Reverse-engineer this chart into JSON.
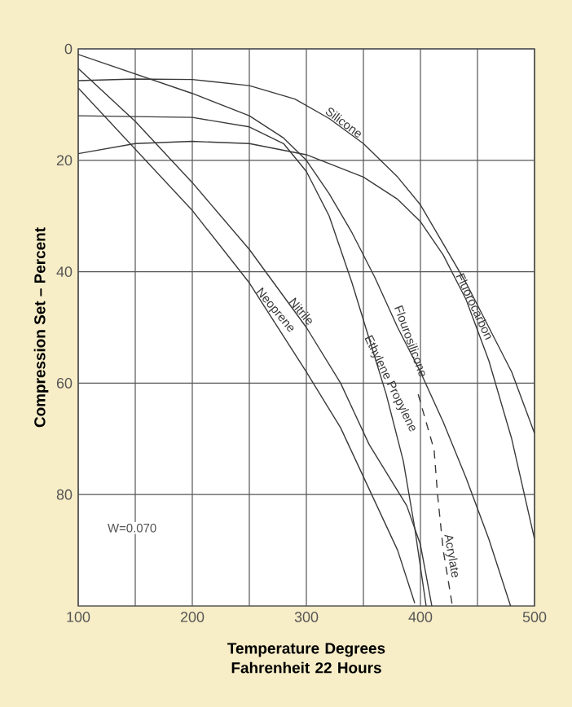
{
  "chart_data": {
    "type": "line",
    "xlabel": "Temperature Degrees Fahrenheit 22 Hours",
    "ylabel": "Compression Set – Percent",
    "xlim": [
      100,
      500
    ],
    "ylim": [
      100,
      0
    ],
    "xticks": [
      100,
      {
        "value": 150,
        "label": null
      },
      200,
      {
        "value": 250,
        "label": null
      },
      300,
      {
        "value": 350,
        "label": null
      },
      400,
      {
        "value": 450,
        "label": null
      },
      500
    ],
    "yticks": [
      0,
      20,
      40,
      60,
      80
    ],
    "grid": true,
    "marker": "none",
    "annotations": [
      "W=0.070"
    ],
    "series": [
      {
        "name": "Silicone",
        "color": "#3a3a3a",
        "x": [
          100,
          150,
          200,
          250,
          290,
          320,
          350,
          380,
          400,
          420,
          440,
          460,
          480,
          500
        ],
        "values": [
          5.7,
          5.4,
          5.5,
          6.6,
          9,
          12.5,
          17,
          23,
          28,
          35,
          42,
          50,
          58,
          69
        ]
      },
      {
        "name": "Fluorocarbon",
        "color": "#3a3a3a",
        "x": [
          100,
          150,
          200,
          250,
          300,
          350,
          380,
          400,
          420,
          440,
          460,
          480,
          500
        ],
        "values": [
          18.8,
          17,
          16.6,
          17,
          19,
          23,
          27,
          31,
          37,
          45,
          56,
          70,
          88
        ]
      },
      {
        "name": "Flourosilicone",
        "color": "#3a3a3a",
        "x": [
          100,
          150,
          200,
          250,
          280,
          300,
          320,
          340,
          360,
          380,
          400,
          420,
          440,
          460,
          479
        ],
        "values": [
          1,
          4.5,
          8,
          12,
          16,
          20,
          26,
          33,
          41,
          50,
          58,
          67,
          77,
          88,
          100
        ]
      },
      {
        "name": "Ethylene Propylene",
        "color": "#3a3a3a",
        "x": [
          100,
          200,
          250,
          280,
          300,
          320,
          340,
          355,
          370,
          385,
          395,
          405
        ],
        "values": [
          12,
          12.3,
          14,
          17,
          22,
          30,
          42,
          52,
          62,
          74,
          86,
          100
        ]
      },
      {
        "name": "Nitrile",
        "color": "#3a3a3a",
        "x": [
          100,
          150,
          200,
          250,
          300,
          330,
          355,
          388,
          400,
          410
        ],
        "values": [
          3.5,
          13,
          24,
          36,
          50,
          60,
          71,
          82,
          89,
          100
        ]
      },
      {
        "name": "Neoprene",
        "color": "#3a3a3a",
        "x": [
          100,
          150,
          200,
          250,
          300,
          330,
          355,
          380,
          395
        ],
        "values": [
          7,
          18,
          29,
          42,
          58,
          68,
          79,
          90,
          99.5
        ]
      },
      {
        "name": "Acrylate",
        "color": "#3a3a3a",
        "line_style": "dashed",
        "x": [
          398,
          405,
          412,
          415,
          420,
          428
        ],
        "values": [
          62,
          67,
          72,
          80,
          90,
          100
        ]
      }
    ]
  }
}
